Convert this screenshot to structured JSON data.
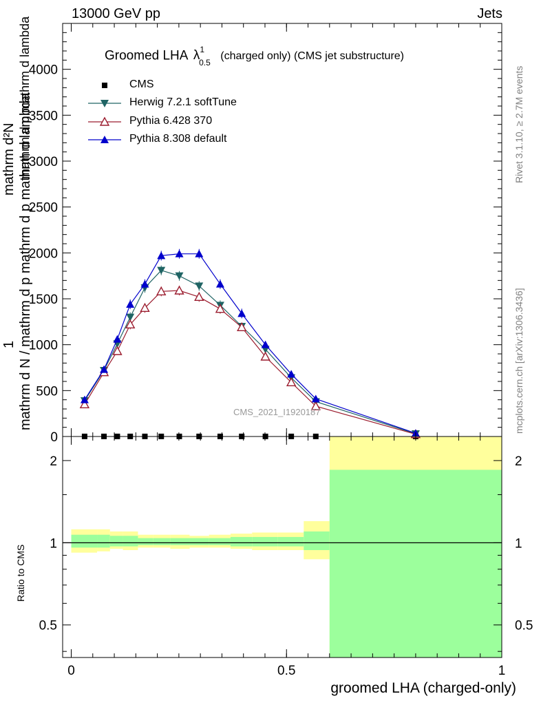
{
  "header": {
    "left": "13000 GeV pp",
    "right": "Jets"
  },
  "side_labels": {
    "rivet": "Rivet 3.1.10, ≥ 2.7M events",
    "mcplots": "mcplots.cern.ch [arXiv:1306.3436]"
  },
  "watermark": "CMS_2021_I1920187",
  "title": {
    "main": "Groomed LHA",
    "lambda": "λ",
    "sup": "1",
    "sub": "0.5",
    "suffix": "(charged only) (CMS jet substructure)"
  },
  "y_label_main": {
    "line1": "1",
    "line2": "mathrm d N / mathrm d p mathrm d p mathrm d lambda",
    "numerator": "mathrm d²N"
  },
  "y_label_ratio": "Ratio to CMS",
  "x_label": "groomed LHA (charged-only)",
  "colors": {
    "cms": "#000000",
    "herwig": "#1f6464",
    "pythia6": "#9b1c2e",
    "pythia8": "#0000cc",
    "band_inner": "#9cff9c",
    "band_outer": "#ffff9c"
  },
  "chart_data": [
    {
      "type": "scatter",
      "panel": "main",
      "x": [
        0.031,
        0.076,
        0.107,
        0.137,
        0.171,
        0.209,
        0.251,
        0.297,
        0.346,
        0.396,
        0.451,
        0.511,
        0.568,
        0.8
      ],
      "ylim": [
        0,
        4500
      ],
      "yticks": [
        "0",
        "500",
        "1000",
        "1500",
        "2000",
        "2500",
        "3000",
        "3500",
        "4000"
      ],
      "series": [
        {
          "name": "CMS",
          "marker": "square",
          "values": [
            1,
            1,
            1,
            1,
            1,
            1,
            1,
            1,
            1,
            1,
            1,
            1,
            1,
            1
          ]
        },
        {
          "name": "Herwig 7.2.1 softTune",
          "marker": "triangle-down",
          "values": [
            390,
            720,
            1010,
            1300,
            1620,
            1810,
            1750,
            1640,
            1430,
            1200,
            950,
            640,
            380,
            30
          ]
        },
        {
          "name": "Pythia 6.428 370",
          "marker": "triangle-up-open",
          "values": [
            350,
            700,
            930,
            1220,
            1400,
            1580,
            1590,
            1520,
            1390,
            1190,
            870,
            590,
            330,
            25
          ]
        },
        {
          "name": "Pythia 8.308 default",
          "marker": "triangle-up",
          "values": [
            400,
            730,
            1060,
            1440,
            1660,
            1970,
            1990,
            1990,
            1660,
            1340,
            1000,
            680,
            410,
            35
          ]
        }
      ]
    },
    {
      "type": "area",
      "panel": "ratio",
      "xlim": [
        -0.02,
        1.0
      ],
      "xticks": [
        "0",
        "0.5",
        "1"
      ],
      "ylim": [
        0.38,
        2.45
      ],
      "log_y": true,
      "yticks": [
        "0.5",
        "1",
        "2"
      ],
      "reference": 1,
      "bins": [
        {
          "x": [
            0.0,
            0.06
          ],
          "inner": [
            0.96,
            1.07
          ],
          "outer": [
            0.92,
            1.12
          ]
        },
        {
          "x": [
            0.06,
            0.09
          ],
          "inner": [
            0.96,
            1.07
          ],
          "outer": [
            0.93,
            1.12
          ]
        },
        {
          "x": [
            0.09,
            0.12
          ],
          "inner": [
            0.97,
            1.06
          ],
          "outer": [
            0.95,
            1.1
          ]
        },
        {
          "x": [
            0.12,
            0.155
          ],
          "inner": [
            0.97,
            1.06
          ],
          "outer": [
            0.94,
            1.1
          ]
        },
        {
          "x": [
            0.155,
            0.19
          ],
          "inner": [
            0.98,
            1.04
          ],
          "outer": [
            0.96,
            1.07
          ]
        },
        {
          "x": [
            0.19,
            0.23
          ],
          "inner": [
            0.98,
            1.04
          ],
          "outer": [
            0.96,
            1.07
          ]
        },
        {
          "x": [
            0.23,
            0.275
          ],
          "inner": [
            0.98,
            1.04
          ],
          "outer": [
            0.95,
            1.07
          ]
        },
        {
          "x": [
            0.275,
            0.32
          ],
          "inner": [
            0.98,
            1.04
          ],
          "outer": [
            0.96,
            1.06
          ]
        },
        {
          "x": [
            0.32,
            0.37
          ],
          "inner": [
            0.98,
            1.04
          ],
          "outer": [
            0.96,
            1.07
          ]
        },
        {
          "x": [
            0.37,
            0.42
          ],
          "inner": [
            0.97,
            1.05
          ],
          "outer": [
            0.95,
            1.08
          ]
        },
        {
          "x": [
            0.42,
            0.48
          ],
          "inner": [
            0.97,
            1.05
          ],
          "outer": [
            0.94,
            1.09
          ]
        },
        {
          "x": [
            0.48,
            0.54
          ],
          "inner": [
            0.97,
            1.05
          ],
          "outer": [
            0.94,
            1.09
          ]
        },
        {
          "x": [
            0.54,
            0.6
          ],
          "inner": [
            0.94,
            1.1
          ],
          "outer": [
            0.87,
            1.2
          ]
        },
        {
          "x": [
            0.6,
            1.0
          ],
          "inner": [
            0.38,
            1.85
          ],
          "outer": [
            0.38,
            2.45
          ]
        }
      ]
    }
  ]
}
